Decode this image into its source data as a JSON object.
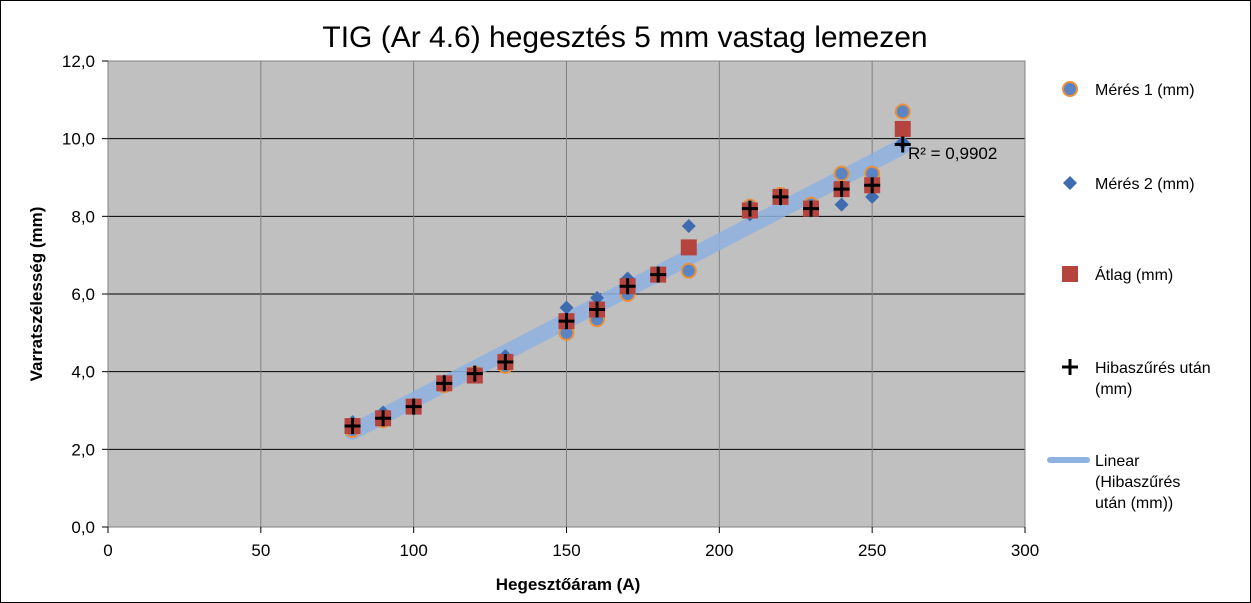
{
  "chart_data": {
    "type": "scatter",
    "title": "TIG (Ar 4.6) hegesztés 5 mm vastag  lemezen",
    "xlabel": "Hegesztőáram (A)",
    "ylabel": "Varratszélesség (mm)",
    "xlim": [
      0,
      300
    ],
    "ylim": [
      0,
      12
    ],
    "xticks": [
      0,
      50,
      100,
      150,
      200,
      250,
      300
    ],
    "xtick_labels": [
      "0",
      "50",
      "100",
      "150",
      "200",
      "250",
      "300"
    ],
    "yticks": [
      0,
      2,
      4,
      6,
      8,
      10,
      12
    ],
    "ytick_labels": [
      "0,0",
      "2,0",
      "4,0",
      "6,0",
      "8,0",
      "10,0",
      "12,0"
    ],
    "grid": true,
    "legend_position": "right",
    "r2_label": "R² = 0,9902",
    "series": [
      {
        "name": "Mérés 1 (mm)",
        "marker": "circle",
        "color": "#5b84c4",
        "edge_color": "#e9913a",
        "x": [
          80,
          90,
          100,
          110,
          120,
          130,
          150,
          160,
          170,
          180,
          190,
          210,
          220,
          230,
          240,
          250,
          260
        ],
        "y": [
          2.5,
          2.75,
          3.1,
          3.65,
          3.95,
          4.15,
          5.0,
          5.35,
          6.0,
          6.5,
          6.6,
          8.25,
          8.55,
          8.3,
          9.1,
          9.1,
          10.7
        ]
      },
      {
        "name": "Mérés 2 (mm)",
        "marker": "diamond",
        "color": "#3f6bb0",
        "x": [
          80,
          90,
          100,
          110,
          120,
          130,
          150,
          160,
          170,
          180,
          190,
          210,
          220,
          230,
          240,
          250,
          260
        ],
        "y": [
          2.7,
          2.95,
          3.05,
          3.75,
          3.9,
          4.4,
          5.65,
          5.9,
          6.4,
          6.5,
          7.75,
          8.05,
          8.45,
          8.15,
          8.3,
          8.5,
          9.9
        ]
      },
      {
        "name": "Átlag (mm)",
        "marker": "square",
        "color": "#b5443f",
        "x": [
          80,
          90,
          100,
          110,
          120,
          130,
          150,
          160,
          170,
          180,
          190,
          210,
          220,
          230,
          240,
          250,
          260
        ],
        "y": [
          2.6,
          2.8,
          3.1,
          3.7,
          3.9,
          4.25,
          5.3,
          5.6,
          6.2,
          6.5,
          7.2,
          8.15,
          8.5,
          8.2,
          8.7,
          8.8,
          10.25
        ]
      },
      {
        "name": "Hibaszűrés után (mm)",
        "marker": "plus",
        "color": "#000000",
        "x": [
          80,
          90,
          100,
          110,
          120,
          130,
          150,
          160,
          170,
          180,
          210,
          220,
          230,
          240,
          250,
          260
        ],
        "y": [
          2.6,
          2.8,
          3.1,
          3.7,
          3.95,
          4.25,
          5.3,
          5.6,
          6.2,
          6.5,
          8.2,
          8.5,
          8.2,
          8.7,
          8.8,
          9.85
        ]
      }
    ],
    "trendline": {
      "name": "Linear (Hibaszűrés után (mm))",
      "type": "linear",
      "color": "#8fb3e0",
      "x": [
        80,
        260
      ],
      "y": [
        2.45,
        9.8
      ]
    },
    "legend": [
      {
        "label_lines": [
          "Mérés 1 (mm)"
        ],
        "marker": "circle"
      },
      {
        "label_lines": [
          "Mérés 2 (mm)"
        ],
        "marker": "diamond"
      },
      {
        "label_lines": [
          "Átlag (mm)"
        ],
        "marker": "square"
      },
      {
        "label_lines": [
          "Hibaszűrés után",
          "(mm)"
        ],
        "marker": "plus"
      },
      {
        "label_lines": [
          "Linear",
          "(Hibaszűrés",
          "után (mm))"
        ],
        "marker": "line"
      }
    ],
    "colors": {
      "plot_background": "#c0c0c0",
      "gridline": "#000000"
    }
  }
}
